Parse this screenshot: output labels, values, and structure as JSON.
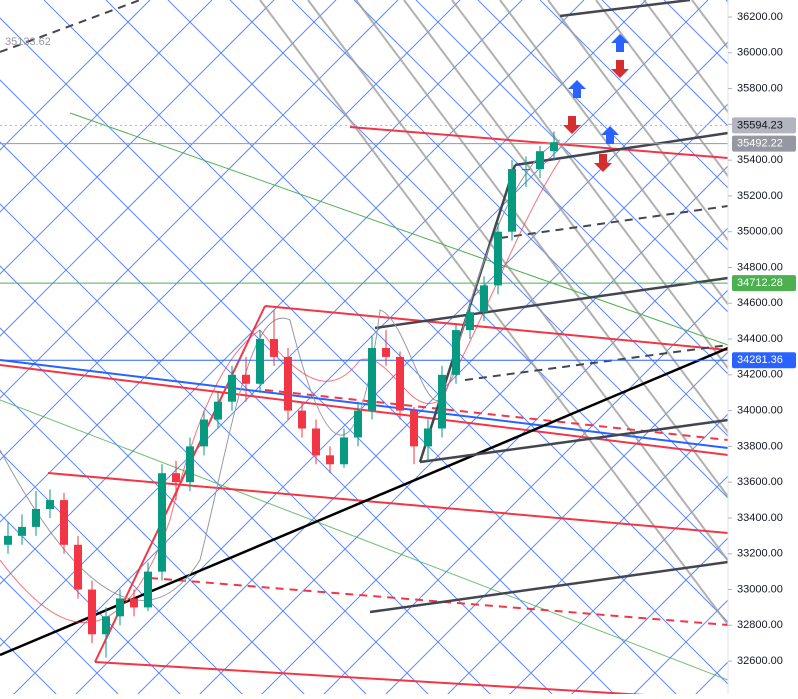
{
  "chart_data": {
    "type": "candlestick",
    "open": [
      33250,
      33300,
      33350,
      33450,
      33500,
      33250,
      33000,
      32750,
      32850,
      32950,
      32900,
      33100,
      33650,
      33600,
      33800,
      33950,
      34050,
      34200,
      34150,
      34400,
      34300,
      34000,
      33900,
      33750,
      33700,
      33850,
      34000,
      34350,
      34300,
      34000,
      33800,
      33900,
      34200,
      34450,
      34550,
      34700,
      35000,
      35350,
      35350,
      35450
    ],
    "high": [
      33380,
      33420,
      33550,
      33560,
      33540,
      33300,
      33050,
      32900,
      33000,
      33000,
      33150,
      33700,
      33720,
      33850,
      34000,
      34100,
      34250,
      34300,
      34450,
      34560,
      34350,
      34050,
      33950,
      33800,
      33900,
      34050,
      34420,
      34450,
      34330,
      34020,
      33950,
      34250,
      34480,
      34600,
      34750,
      35050,
      35400,
      35420,
      35480,
      35560
    ],
    "low": [
      33200,
      33250,
      33300,
      33400,
      33200,
      32950,
      32700,
      32620,
      32800,
      32850,
      32880,
      33050,
      33500,
      33550,
      33750,
      33900,
      34000,
      34050,
      34100,
      34250,
      33950,
      33850,
      33700,
      33650,
      33680,
      33800,
      33950,
      34250,
      33950,
      33700,
      33720,
      33850,
      34150,
      34400,
      34500,
      34650,
      34950,
      35250,
      35300,
      35400
    ],
    "close": [
      33300,
      33350,
      33450,
      33500,
      33250,
      33000,
      32750,
      32850,
      32950,
      32900,
      33100,
      33650,
      33600,
      33800,
      33950,
      34050,
      34200,
      34150,
      34400,
      34300,
      34000,
      33900,
      33750,
      33700,
      33850,
      34000,
      34350,
      34300,
      34000,
      33800,
      33900,
      34200,
      34450,
      34550,
      34700,
      35000,
      35350,
      35350,
      35450,
      35500
    ],
    "up_color": "#089981",
    "down_color": "#f23645",
    "ylim": [
      32416,
      36295
    ],
    "yticks": [
      {
        "value": 32600,
        "label": "32600.00"
      },
      {
        "value": 32800,
        "label": "32800.00"
      },
      {
        "value": 33000,
        "label": "33000.00"
      },
      {
        "value": 33200,
        "label": "33200.00"
      },
      {
        "value": 33400,
        "label": "33400.00"
      },
      {
        "value": 33600,
        "label": "33600.00"
      },
      {
        "value": 33800,
        "label": "33800.00"
      },
      {
        "value": 34000,
        "label": "34000.00"
      },
      {
        "value": 34200,
        "label": "34200.00"
      },
      {
        "value": 34400,
        "label": "34400.00"
      },
      {
        "value": 34600,
        "label": "34600.00"
      },
      {
        "value": 34800,
        "label": "34800.00"
      },
      {
        "value": 35000,
        "label": "35000.00"
      },
      {
        "value": 35200,
        "label": "35200.00"
      },
      {
        "value": 35400,
        "label": "35400.00"
      },
      {
        "value": 35600,
        "label": "35600.00"
      },
      {
        "value": 35800,
        "label": "35800.00"
      },
      {
        "value": 36000,
        "label": "36000.00"
      },
      {
        "value": 36200,
        "label": "36200.00"
      }
    ],
    "price_labels": [
      {
        "value": 35594.23,
        "color": "#b2b5be"
      },
      {
        "value": 35492.22,
        "color": "#9598a1"
      },
      {
        "value": 34712.28,
        "color": "#4caf50"
      },
      {
        "value": 34281.36,
        "color": "#2962ff"
      }
    ],
    "annotation": "35133.62"
  }
}
